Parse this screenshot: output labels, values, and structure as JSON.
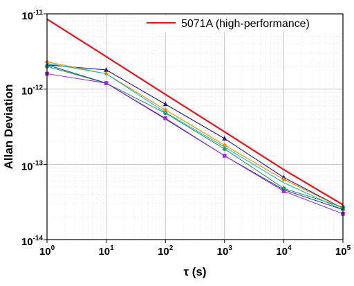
{
  "chart_data": {
    "type": "line",
    "xlabel": "τ (s)",
    "ylabel": "Allan Deviation",
    "x_scale": "log",
    "y_scale": "log",
    "xlim": [
      1,
      100000
    ],
    "ylim": [
      1e-14,
      1e-11
    ],
    "x_ticks": [
      {
        "base": "10",
        "exp": "0",
        "value": 1
      },
      {
        "base": "10",
        "exp": "1",
        "value": 10
      },
      {
        "base": "10",
        "exp": "2",
        "value": 100
      },
      {
        "base": "10",
        "exp": "3",
        "value": 1000
      },
      {
        "base": "10",
        "exp": "4",
        "value": 10000
      },
      {
        "base": "10",
        "exp": "5",
        "value": 100000
      }
    ],
    "y_ticks": [
      {
        "base": "10",
        "exp": "-11",
        "value": 1e-11
      },
      {
        "base": "10",
        "exp": "-12",
        "value": 1e-12
      },
      {
        "base": "10",
        "exp": "-13",
        "value": 1e-13
      },
      {
        "base": "10",
        "exp": "-14",
        "value": 1e-14
      }
    ],
    "grid": true,
    "minor_grid": true,
    "legend_position": "top-right",
    "x": [
      1,
      10,
      100,
      1000,
      10000,
      100000
    ],
    "series": [
      {
        "name": "5071A (high-performance)",
        "color": "#e8141a",
        "marker": "none",
        "values": [
          8.5e-12,
          2.7e-12,
          8.5e-13,
          2.7e-13,
          8.5e-14,
          2.9e-14
        ]
      },
      {
        "color": "#1a1a8c",
        "marker": "triangle",
        "values": [
          2.1e-12,
          1.8e-12,
          6.3e-13,
          2.2e-13,
          6.7e-14,
          2.6e-14
        ]
      },
      {
        "color": "#f08c00",
        "marker": "diamond",
        "values": [
          2.3e-12,
          1.6e-12,
          5.3e-13,
          1.8e-13,
          6.3e-14,
          2.6e-14
        ]
      },
      {
        "color": "#1f9a6a",
        "marker": "circle",
        "values": [
          2e-12,
          1.2e-12,
          4.8e-13,
          1.6e-13,
          4.8e-14,
          2.7e-14
        ]
      },
      {
        "color": "#20b8b8",
        "marker": "none",
        "values": [
          2.2e-12,
          1.6e-12,
          4.9e-13,
          1.7e-13,
          5.7e-14,
          2.5e-14
        ]
      },
      {
        "color": "#2a3fa0",
        "marker": "none",
        "values": [
          2.1e-12,
          1.2e-12,
          4e-13,
          1.3e-13,
          4.6e-14,
          2.5e-14
        ]
      },
      {
        "color": "#9b30d0",
        "marker": "square",
        "values": [
          1.6e-12,
          1.2e-12,
          4.1e-13,
          1.3e-13,
          4.4e-14,
          2.2e-14
        ]
      }
    ]
  }
}
